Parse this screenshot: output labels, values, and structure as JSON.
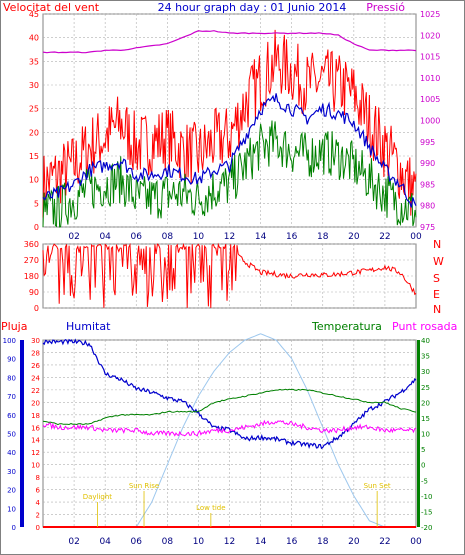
{
  "title": "24 hour graph day : 01 Junio 2014",
  "colors": {
    "wind": "#ff0000",
    "gust_avg": "#0000cc",
    "wind_low": "#008000",
    "pressure": "#cc00cc",
    "direction": "#ff0000",
    "humidity": "#0000cc",
    "temperature": "#008000",
    "dewpoint": "#ff00ff",
    "rain": "#ff0000",
    "solar": "#9ec8ee",
    "sun_events": "#e0c000",
    "grid": "#b0b0b0"
  },
  "x_hours": [
    "02",
    "04",
    "06",
    "08",
    "10",
    "12",
    "14",
    "16",
    "18",
    "20",
    "22",
    "00"
  ],
  "chart_data": [
    {
      "type": "line",
      "title": "24 hour graph day : 01 Junio 2014",
      "left_label": "Velocitat del vent",
      "right_label": "Pressió",
      "ylim_left": [
        0,
        45
      ],
      "ylim_right": [
        975,
        1025
      ],
      "ticks_left": [
        "0",
        "5",
        "10",
        "15",
        "20",
        "25",
        "30",
        "35",
        "40",
        "45"
      ],
      "ticks_right": [
        "975",
        "980",
        "985",
        "990",
        "995",
        "1000",
        "1005",
        "1010",
        "1015",
        "1020",
        "1025"
      ],
      "hours": [
        0,
        1,
        2,
        3,
        4,
        5,
        6,
        7,
        8,
        9,
        10,
        11,
        12,
        13,
        14,
        15,
        16,
        17,
        18,
        19,
        20,
        21,
        22,
        23,
        24
      ],
      "series": [
        {
          "name": "gust",
          "axis": "left",
          "values": [
            9,
            11,
            13,
            17,
            19,
            22,
            17,
            18,
            19,
            16,
            15,
            18,
            19,
            26,
            31,
            35,
            33,
            30,
            31,
            30,
            28,
            22,
            17,
            12,
            7
          ]
        },
        {
          "name": "speed",
          "axis": "left",
          "values": [
            6,
            7,
            9,
            12,
            13,
            14,
            11,
            11,
            12,
            11,
            10,
            12,
            13,
            19,
            25,
            27,
            25,
            23,
            25,
            24,
            22,
            17,
            12,
            9,
            4
          ]
        },
        {
          "name": "low",
          "axis": "left",
          "values": [
            3,
            4,
            6,
            8,
            9,
            10,
            6,
            6,
            7,
            7,
            6,
            8,
            9,
            13,
            17,
            18,
            16,
            15,
            16,
            15,
            13,
            10,
            7,
            5,
            3
          ]
        },
        {
          "name": "pressure",
          "axis": "right",
          "values": [
            1016,
            1016,
            1016,
            1016,
            1016.5,
            1016.5,
            1017,
            1017.5,
            1018,
            1019.5,
            1021,
            1021,
            1020.5,
            1020.5,
            1020.5,
            1020.5,
            1020.5,
            1020.5,
            1020.5,
            1020,
            1018,
            1016.5,
            1016.5,
            1016.5,
            1016.5
          ]
        }
      ]
    },
    {
      "type": "line",
      "left_label_ticks": [
        "0",
        "90",
        "180",
        "270",
        "360"
      ],
      "right_label": [
        "N",
        "W",
        "S",
        "E",
        "N"
      ],
      "ylim": [
        0,
        360
      ],
      "hours": [
        0,
        1,
        2,
        3,
        4,
        5,
        6,
        7,
        8,
        9,
        10,
        11,
        12,
        13,
        14,
        15,
        16,
        17,
        18,
        19,
        20,
        21,
        22,
        23,
        24
      ],
      "series": [
        {
          "name": "direction",
          "values": [
            300,
            340,
            200,
            330,
            120,
            340,
            160,
            330,
            60,
            340,
            320,
            340,
            330,
            260,
            200,
            190,
            180,
            190,
            185,
            190,
            200,
            210,
            230,
            200,
            80
          ]
        }
      ]
    },
    {
      "type": "line",
      "labels": {
        "rain": "Pluja",
        "humidity": "Humitat",
        "temperature": "Temperatura",
        "dewpoint": "Punt rosada"
      },
      "ylim_rain": [
        0,
        30
      ],
      "ylim_humidity": [
        0,
        100
      ],
      "ylim_temperature": [
        -20,
        40
      ],
      "ticks_rain": [
        "0",
        "2",
        "4",
        "6",
        "8",
        "10",
        "12",
        "14",
        "16",
        "18",
        "20",
        "22",
        "24",
        "26",
        "28",
        "30"
      ],
      "ticks_humidity": [
        "0",
        "10",
        "20",
        "30",
        "40",
        "50",
        "60",
        "70",
        "80",
        "90",
        "100"
      ],
      "ticks_temperature": [
        "-20",
        "-15",
        "-10",
        "-5",
        "0",
        "5",
        "10",
        "15",
        "20",
        "25",
        "30",
        "35",
        "40"
      ],
      "hours": [
        0,
        1,
        2,
        3,
        4,
        5,
        6,
        7,
        8,
        9,
        10,
        11,
        12,
        13,
        14,
        15,
        16,
        17,
        18,
        19,
        20,
        21,
        22,
        23,
        24
      ],
      "series": [
        {
          "name": "humidity",
          "values": [
            99,
            99,
            99,
            98,
            82,
            79,
            74,
            72,
            69,
            67,
            61,
            53,
            52,
            47,
            48,
            47,
            45,
            44,
            43,
            48,
            55,
            63,
            67,
            72,
            79
          ]
        },
        {
          "name": "temperature",
          "values": [
            14,
            13,
            13,
            13,
            15,
            16,
            16,
            16,
            17,
            17,
            17,
            20,
            21,
            22,
            23,
            24,
            24,
            24,
            23,
            22,
            21,
            20,
            20,
            18,
            17
          ]
        },
        {
          "name": "dewpoint",
          "values": [
            13,
            12,
            12,
            12,
            11,
            11,
            11,
            10,
            10,
            10,
            10,
            11,
            11,
            12,
            13,
            14,
            13,
            12,
            11,
            11,
            12,
            12,
            11,
            11,
            11
          ]
        },
        {
          "name": "rain",
          "values": [
            0,
            0,
            0,
            0,
            0,
            0,
            0,
            0,
            0,
            0,
            0,
            0,
            0,
            0,
            0,
            0,
            0,
            0,
            0,
            0,
            0,
            0,
            0,
            0,
            0
          ]
        },
        {
          "name": "solar",
          "values": [
            0,
            0,
            0,
            0,
            0,
            0,
            0,
            4,
            10,
            16,
            21,
            25,
            28,
            30,
            31,
            30,
            27,
            22,
            16,
            10,
            5,
            1,
            0,
            0,
            0
          ]
        }
      ],
      "sun_events": [
        {
          "label": "Daylight",
          "hour": 3.5,
          "level": 2
        },
        {
          "label": "Sun Rise",
          "hour": 6.5,
          "level": 3
        },
        {
          "label": "Low tide",
          "hour": 10.8,
          "level": 1
        },
        {
          "label": "Sun Set",
          "hour": 21.5,
          "level": 3
        }
      ]
    }
  ]
}
